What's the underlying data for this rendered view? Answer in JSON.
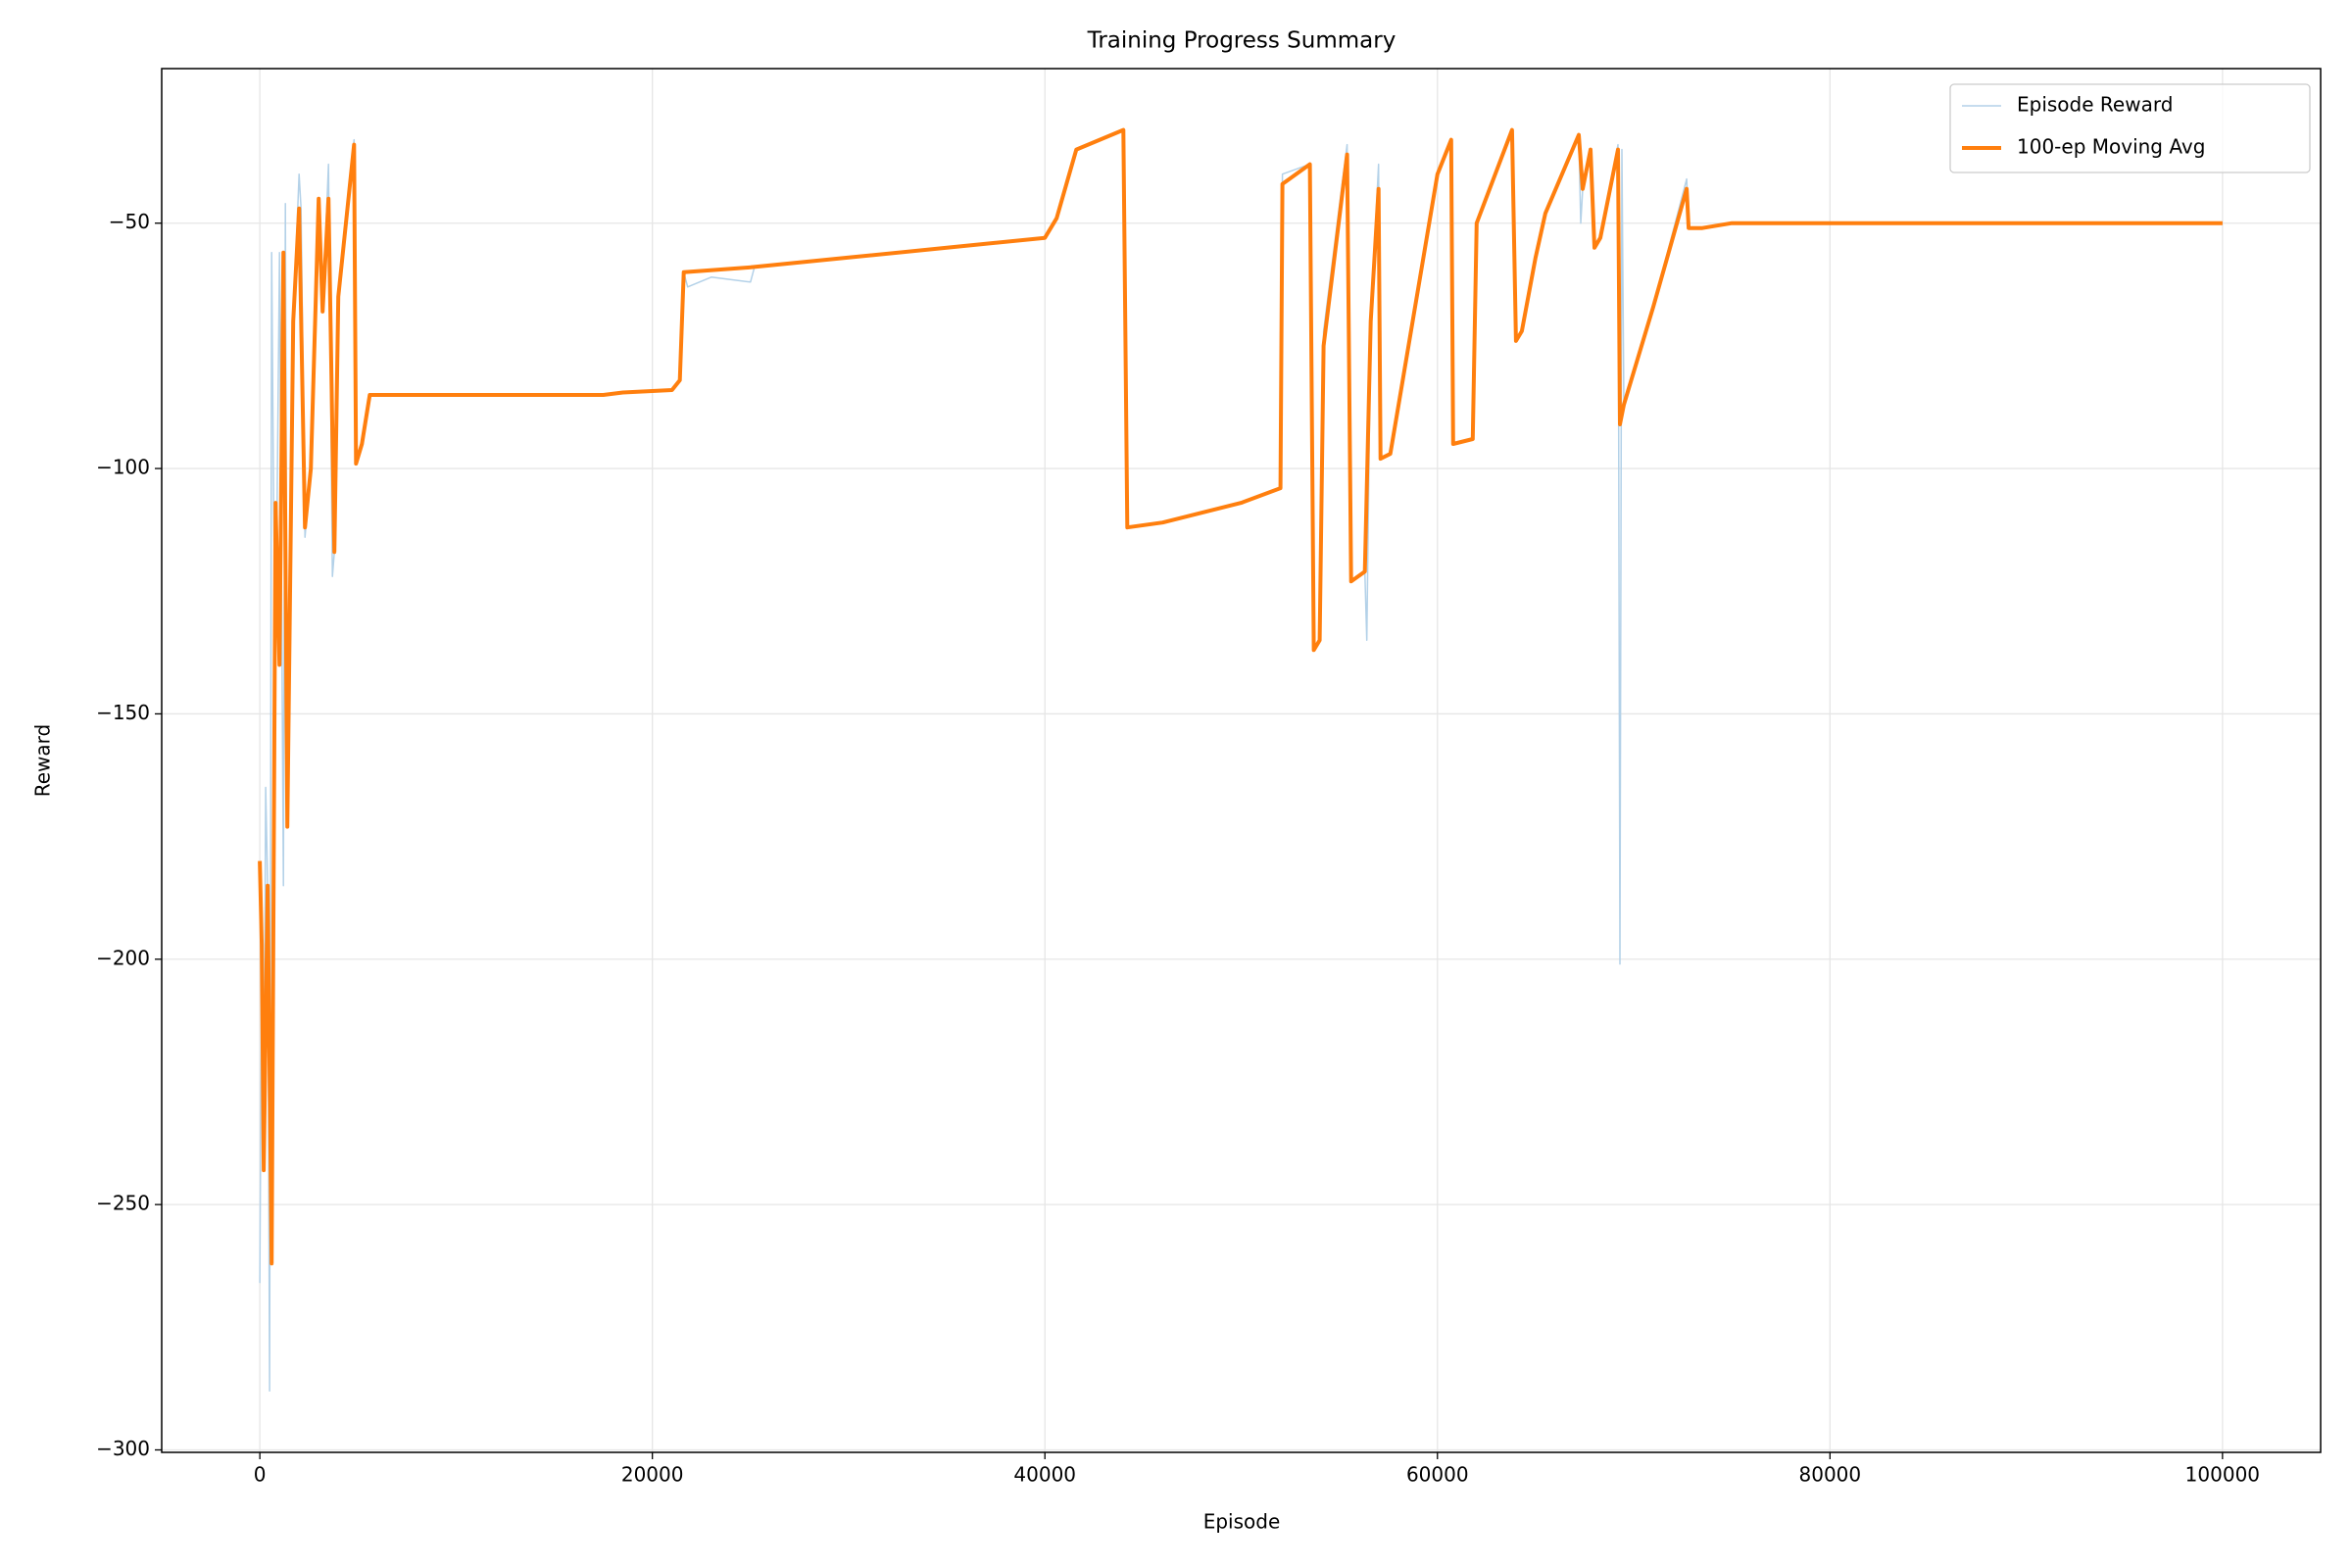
{
  "chart_data": {
    "type": "line",
    "title": "Training Progress Summary",
    "x_label": "Episode",
    "y_label": "Reward",
    "xlim": [
      -5000,
      105000
    ],
    "ylim": [
      -300.5,
      -18.5
    ],
    "xticks": [
      0,
      20000,
      40000,
      60000,
      80000,
      100000
    ],
    "yticks": [
      {
        "value": -300,
        "label": "−300"
      },
      {
        "value": -250,
        "label": "−250"
      },
      {
        "value": -200,
        "label": "−200"
      },
      {
        "value": -150,
        "label": "−150"
      },
      {
        "value": -100,
        "label": "−100"
      },
      {
        "value": -50,
        "label": "−50"
      }
    ],
    "grid": true,
    "legend": "upper right",
    "series": [
      {
        "name": "Episode Reward",
        "color": "#b3d1e8",
        "width": 1.5,
        "x": [
          0,
          100,
          200,
          300,
          400,
          500,
          600,
          700,
          800,
          1000,
          1200,
          1300,
          1400,
          1700,
          2000,
          2100,
          2300,
          2600,
          3000,
          3200,
          3500,
          3700,
          3800,
          4000,
          4800,
          4900,
          5200,
          5600,
          10000,
          17500,
          18500,
          21000,
          21400,
          21600,
          21800,
          23000,
          25000,
          25200,
          30000,
          35000,
          40000,
          40600,
          41600,
          44000,
          44200,
          46000,
          50000,
          52000,
          52100,
          53500,
          53700,
          54000,
          54200,
          55400,
          55600,
          56300,
          56400,
          56600,
          57000,
          57100,
          57600,
          60000,
          60700,
          60800,
          61800,
          62000,
          63800,
          64000,
          64300,
          65000,
          65500,
          67200,
          67300,
          67400,
          67800,
          68000,
          68300,
          68500,
          69200,
          69300,
          69400,
          69500,
          71000,
          72700,
          72800,
          73500,
          75000,
          80000,
          100000
        ],
        "values": [
          -266,
          -197,
          -243,
          -165,
          -185,
          -288,
          -56,
          -107,
          -140,
          -56,
          -185,
          -46,
          -173,
          -70,
          -40,
          -47,
          -114,
          -100,
          -45,
          -68,
          -38,
          -122,
          -117,
          -65,
          -33,
          -99,
          -95,
          -85,
          -85,
          -85,
          -84.5,
          -84,
          -82,
          -60,
          -63,
          -61,
          -62,
          -59,
          -57,
          -55,
          -53,
          -49,
          -35,
          -31,
          -112,
          -111,
          -107,
          -104,
          -40,
          -38,
          -137,
          -135,
          -72,
          -34,
          -123,
          -121,
          -135,
          -70,
          -38,
          -98,
          -97,
          -40,
          -33,
          -95,
          -94,
          -50,
          -31,
          -74,
          -72,
          -57,
          -48,
          -32,
          -50,
          -43,
          -35,
          -55,
          -53,
          -49,
          -34,
          -201,
          -35,
          -87,
          -67,
          -41,
          -51,
          -51,
          -50,
          -50,
          -50
        ]
      },
      {
        "name": "100-ep Moving Avg",
        "color": "#ff7f0e",
        "width": 4,
        "x": [
          0,
          100,
          200,
          400,
          600,
          800,
          1000,
          1200,
          1400,
          1700,
          2000,
          2300,
          2600,
          3000,
          3200,
          3500,
          3800,
          4000,
          4800,
          4900,
          5200,
          5600,
          10000,
          17500,
          18500,
          21000,
          21400,
          21600,
          25000,
          30000,
          35000,
          40000,
          40600,
          41600,
          44000,
          44200,
          46000,
          50000,
          52000,
          52100,
          53500,
          53700,
          54000,
          54200,
          55400,
          55600,
          56300,
          56600,
          57000,
          57100,
          57600,
          60000,
          60700,
          60800,
          61800,
          62000,
          63800,
          64000,
          64300,
          65000,
          65500,
          67200,
          67400,
          67800,
          68000,
          68300,
          68500,
          69200,
          69300,
          69500,
          71000,
          72700,
          72800,
          73500,
          75000,
          80000,
          100000
        ],
        "values": [
          -180,
          -197,
          -243,
          -185,
          -262,
          -107,
          -140,
          -56,
          -173,
          -70,
          -47,
          -112,
          -100,
          -45,
          -68,
          -45,
          -117,
          -65,
          -34,
          -99,
          -95,
          -85,
          -85,
          -85,
          -84.5,
          -84,
          -82,
          -60,
          -59,
          -57,
          -55,
          -53,
          -49,
          -35,
          -31,
          -112,
          -111,
          -107,
          -104,
          -42,
          -38,
          -137,
          -135,
          -75,
          -36,
          -123,
          -121,
          -70,
          -43,
          -98,
          -97,
          -40,
          -33,
          -95,
          -94,
          -50,
          -31,
          -74,
          -72,
          -57,
          -48,
          -32,
          -43,
          -35,
          -55,
          -53,
          -49,
          -35,
          -91,
          -87,
          -67,
          -43,
          -51,
          -51,
          -50,
          -50,
          -50
        ]
      }
    ]
  }
}
